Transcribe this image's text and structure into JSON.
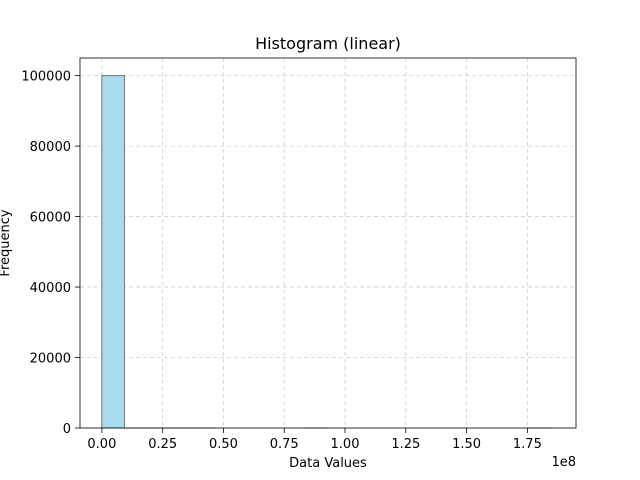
{
  "chart_data": {
    "type": "bar",
    "title": "Histogram (linear)",
    "xlabel": "Data Values",
    "ylabel": "Frequency",
    "x_offset_label": "1e8",
    "xlim": [
      -0.09,
      1.95
    ],
    "ylim": [
      0,
      105000
    ],
    "x_ticks": [
      0.0,
      0.25,
      0.5,
      0.75,
      1.0,
      1.25,
      1.5,
      1.75
    ],
    "x_tick_labels": [
      "0.00",
      "0.25",
      "0.50",
      "0.75",
      "1.00",
      "1.25",
      "1.50",
      "1.75"
    ],
    "y_ticks": [
      0,
      20000,
      40000,
      60000,
      80000,
      100000
    ],
    "y_tick_labels": [
      "0",
      "20000",
      "40000",
      "60000",
      "80000",
      "100000"
    ],
    "grid": true,
    "bar_color": "#a8dcee",
    "bar_edge_color": "#555555",
    "bins": [
      {
        "x0": 0.0,
        "x1": 0.0925,
        "count": 99985
      },
      {
        "x0": 0.0925,
        "x1": 0.185,
        "count": 9
      },
      {
        "x0": 0.185,
        "x1": 0.2775,
        "count": 2
      },
      {
        "x0": 0.2775,
        "x1": 0.37,
        "count": 1
      },
      {
        "x0": 0.37,
        "x1": 0.4625,
        "count": 1
      },
      {
        "x0": 0.4625,
        "x1": 0.555,
        "count": 0
      },
      {
        "x0": 0.555,
        "x1": 0.6475,
        "count": 0
      },
      {
        "x0": 0.6475,
        "x1": 0.74,
        "count": 0
      },
      {
        "x0": 0.74,
        "x1": 0.8325,
        "count": 0
      },
      {
        "x0": 0.8325,
        "x1": 0.925,
        "count": 1
      },
      {
        "x0": 0.925,
        "x1": 1.0175,
        "count": 0
      },
      {
        "x0": 1.0175,
        "x1": 1.11,
        "count": 0
      },
      {
        "x0": 1.11,
        "x1": 1.2025,
        "count": 0
      },
      {
        "x0": 1.2025,
        "x1": 1.295,
        "count": 0
      },
      {
        "x0": 1.295,
        "x1": 1.3875,
        "count": 0
      },
      {
        "x0": 1.3875,
        "x1": 1.48,
        "count": 0
      },
      {
        "x0": 1.48,
        "x1": 1.5725,
        "count": 0
      },
      {
        "x0": 1.5725,
        "x1": 1.665,
        "count": 0
      },
      {
        "x0": 1.665,
        "x1": 1.7575,
        "count": 0
      },
      {
        "x0": 1.7575,
        "x1": 1.85,
        "count": 1
      }
    ]
  }
}
